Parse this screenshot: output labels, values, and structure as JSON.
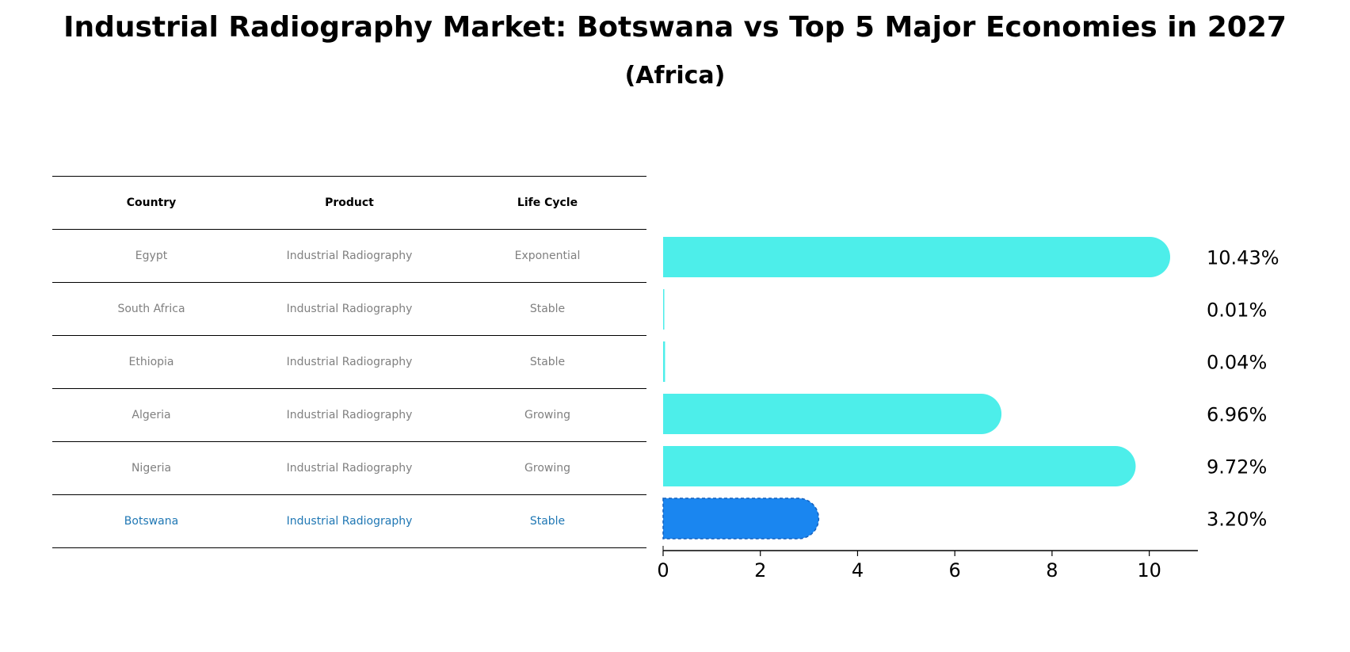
{
  "title": "Industrial Radiography Market: Botswana vs Top 5 Major Economies in 2027",
  "subtitle": "(Africa)",
  "table": {
    "headers": [
      "Country",
      "Product",
      "Life Cycle"
    ],
    "rows": [
      {
        "country": "Egypt",
        "product": "Industrial Radiography",
        "life_cycle": "Exponential"
      },
      {
        "country": "South Africa",
        "product": "Industrial Radiography",
        "life_cycle": "Stable"
      },
      {
        "country": "Ethiopia",
        "product": "Industrial Radiography",
        "life_cycle": "Stable"
      },
      {
        "country": "Algeria",
        "product": "Industrial Radiography",
        "life_cycle": "Growing"
      },
      {
        "country": "Nigeria",
        "product": "Industrial Radiography",
        "life_cycle": "Growing"
      },
      {
        "country": "Botswana",
        "product": "Industrial Radiography",
        "life_cycle": "Stable"
      }
    ]
  },
  "chart_data": {
    "type": "bar",
    "orientation": "horizontal",
    "title": "Industrial Radiography Market: Botswana vs Top 5 Major Economies in 2027",
    "subtitle": "(Africa)",
    "categories": [
      "Egypt",
      "South Africa",
      "Ethiopia",
      "Algeria",
      "Nigeria",
      "Botswana"
    ],
    "values": [
      10.43,
      0.01,
      0.04,
      6.96,
      9.72,
      3.2
    ],
    "value_labels": [
      "10.43%",
      "0.01%",
      "0.04%",
      "6.96%",
      "9.72%",
      "3.20%"
    ],
    "highlight": "Botswana",
    "xlim": [
      0,
      11
    ],
    "xticks": [
      0,
      2,
      4,
      6,
      8,
      10
    ],
    "xtick_labels": [
      "0",
      "2",
      "4",
      "6",
      "8",
      "10"
    ],
    "xlabel": "",
    "ylabel": "",
    "grid": false,
    "colors": {
      "default": "#4deeea",
      "highlight": "#1a86f0"
    }
  }
}
